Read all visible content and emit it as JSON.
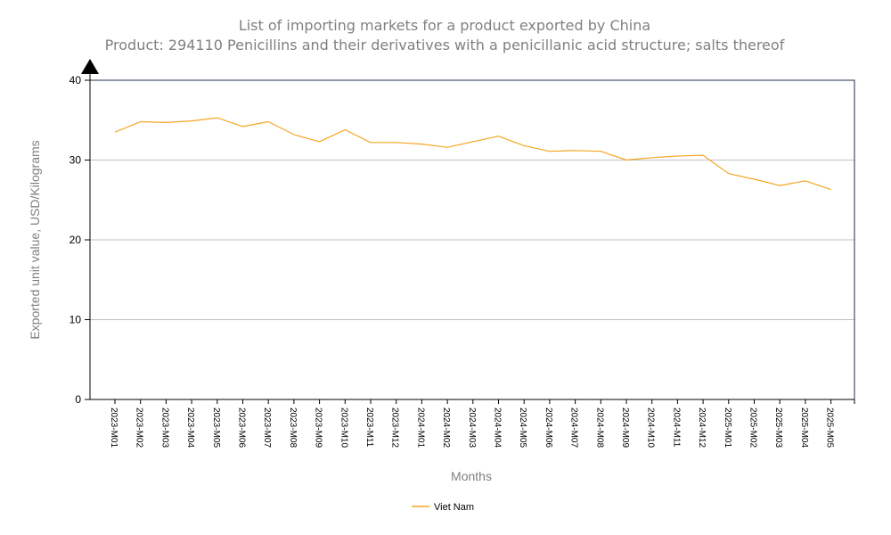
{
  "chart_data": {
    "type": "line",
    "title": "List of importing markets for a product exported by China",
    "subtitle": "Product: 294110 Penicillins and their derivatives with a penicillanic acid structure; salts thereof",
    "xlabel": "Months",
    "ylabel": "Exported unit value, USD/Kilograms",
    "ylim": [
      0,
      40
    ],
    "yticks": [
      0,
      10,
      20,
      30,
      40
    ],
    "grid": true,
    "legend_position": "bottom-center",
    "categories": [
      "2023-M01",
      "2023-M02",
      "2023-M03",
      "2023-M04",
      "2023-M05",
      "2023-M06",
      "2023-M07",
      "2023-M08",
      "2023-M09",
      "2023-M10",
      "2023-M11",
      "2023-M12",
      "2024-M01",
      "2024-M02",
      "2024-M03",
      "2024-M04",
      "2024-M05",
      "2024-M06",
      "2024-M07",
      "2024-M08",
      "2024-M09",
      "2024-M10",
      "2024-M11",
      "2024-M12",
      "2025-M01",
      "2025-M02",
      "2025-M03",
      "2025-M04",
      "2025-M05"
    ],
    "series": [
      {
        "name": "Viet Nam",
        "color": "#f5a623",
        "values": [
          33.5,
          34.8,
          34.7,
          34.9,
          35.3,
          34.2,
          34.8,
          33.2,
          32.3,
          33.8,
          32.2,
          32.2,
          32.0,
          31.6,
          32.3,
          33.0,
          31.8,
          31.1,
          31.2,
          31.1,
          30.0,
          30.3,
          30.5,
          30.6,
          28.3,
          27.6,
          26.8,
          27.4,
          26.3
        ]
      }
    ]
  },
  "colors": {
    "axis": "#000000",
    "gridline": "#c0c0c0",
    "plot_border": "#1f2f4f",
    "title": "#808080"
  }
}
